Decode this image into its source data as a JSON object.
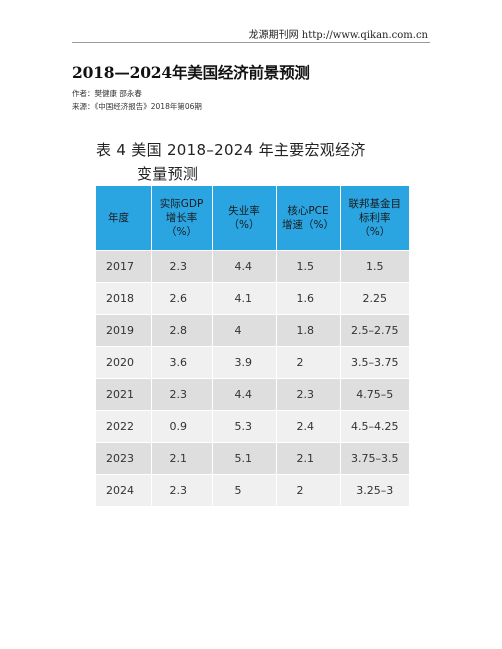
{
  "header": {
    "site_text": "龙源期刊网 http://www.qikan.com.cn"
  },
  "article": {
    "title": "2018—2024年美国经济前景预测",
    "author": "作者：樊健康 邵永春",
    "source": "来源：《中国经济报告》2018年第06期"
  },
  "table": {
    "caption_line1": "表 4  美国 2018–2024 年主要宏观经济",
    "caption_line2": "变量预测",
    "headers": [
      [
        "年度"
      ],
      [
        "实际GDP",
        "增长率",
        "（%）"
      ],
      [
        "失业率",
        "（%）"
      ],
      [
        "核心PCE",
        "增速（%）"
      ],
      [
        "联邦基金目",
        "标利率",
        "（%）"
      ]
    ],
    "rows": [
      [
        "2017",
        "2.3",
        "4.4",
        "1.5",
        "1.5"
      ],
      [
        "2018",
        "2.6",
        "4.1",
        "1.6",
        "2.25"
      ],
      [
        "2019",
        "2.8",
        "4",
        "1.8",
        "2.5–2.75"
      ],
      [
        "2020",
        "3.6",
        "3.9",
        "2",
        "3.5–3.75"
      ],
      [
        "2021",
        "2.3",
        "4.4",
        "2.3",
        "4.75–5"
      ],
      [
        "2022",
        "0.9",
        "5.3",
        "2.4",
        "4.5–4.25"
      ],
      [
        "2023",
        "2.1",
        "5.1",
        "2.1",
        "3.75–3.5"
      ],
      [
        "2024",
        "2.3",
        "5",
        "2",
        "3.25–3"
      ]
    ],
    "colors": {
      "header_bg": "#2aa5e2",
      "row_dark": "#dedede",
      "row_light": "#f0f0f0"
    }
  }
}
